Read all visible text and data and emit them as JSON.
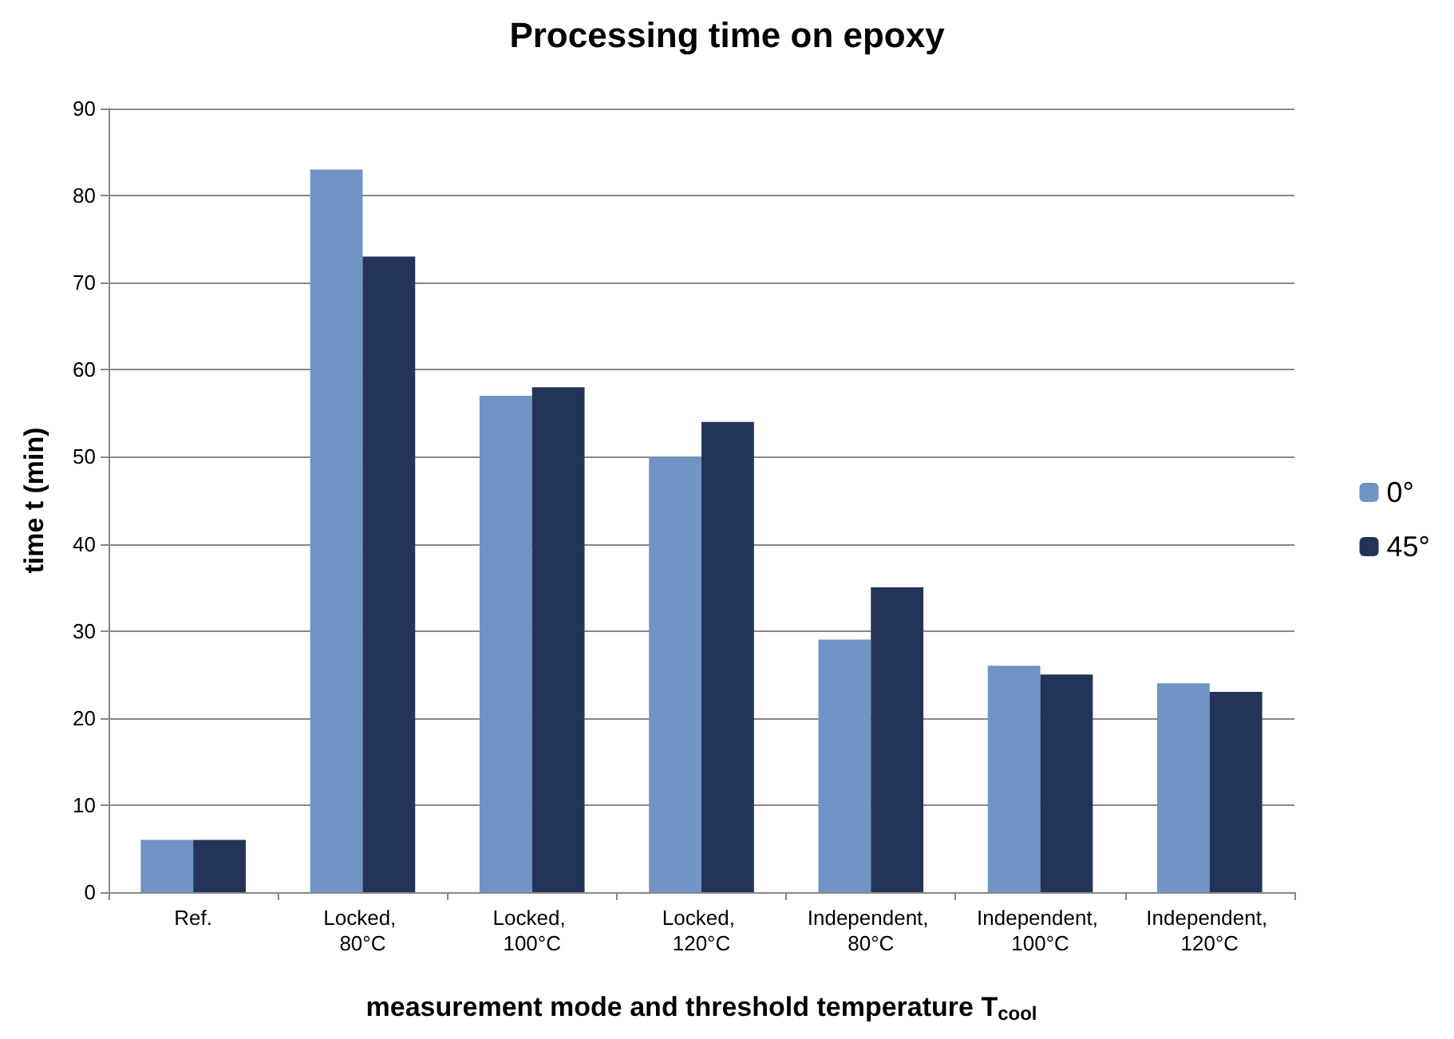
{
  "chart_data": {
    "type": "bar",
    "title": "Processing time on epoxy",
    "xlabel": "measurement mode and threshold temperature T$_{cool}$",
    "ylabel": "time t (min)",
    "categories": [
      "Ref.",
      "Locked, 80°C",
      "Locked, 100°C",
      "Locked, 120°C",
      "Independent, 80°C",
      "Independent, 100°C",
      "Independent, 120°C"
    ],
    "series": [
      {
        "name": "0°",
        "color": "#7094c4",
        "values": [
          6,
          83,
          57,
          50,
          29,
          26,
          24
        ]
      },
      {
        "name": "45°",
        "color": "#243358",
        "values": [
          6,
          73,
          58,
          54,
          35,
          25,
          23
        ]
      }
    ],
    "ylim": [
      0,
      90
    ],
    "yticks": [
      0,
      10,
      20,
      30,
      40,
      50,
      60,
      70,
      80,
      90
    ],
    "grid": "y",
    "legend": "right"
  }
}
